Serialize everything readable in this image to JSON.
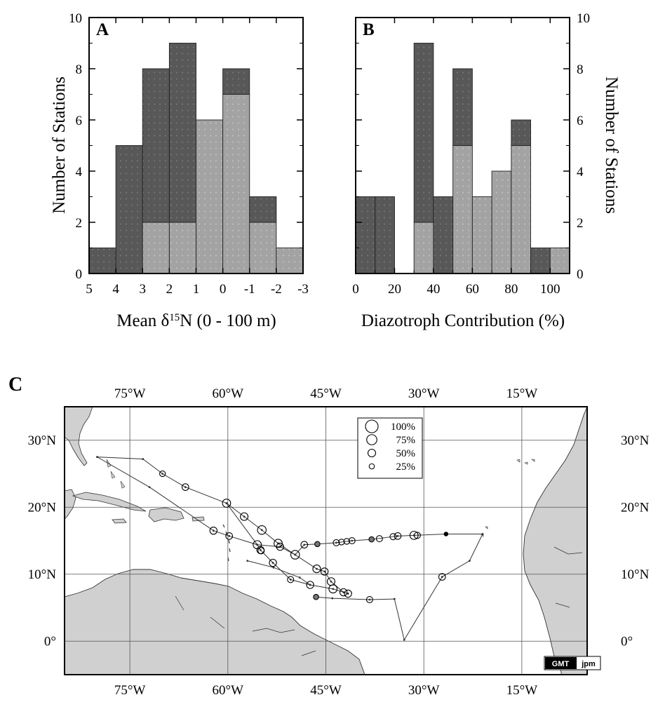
{
  "chart_data": [
    {
      "panel": "A",
      "type": "bar",
      "stacked": true,
      "xlabel": "Mean δ15N (0 - 100 m)",
      "ylabel": "Number of Stations",
      "x_ticks": [
        "5",
        "4",
        "3",
        "2",
        "1",
        "0",
        "-1",
        "-2",
        "-3"
      ],
      "x_reversed": true,
      "xlim": [
        5,
        -3
      ],
      "ylim": [
        0,
        10
      ],
      "y_ticks": [
        0,
        2,
        4,
        6,
        8,
        10
      ],
      "bins": [
        [
          5,
          4
        ],
        [
          4,
          3
        ],
        [
          3,
          2
        ],
        [
          2,
          1
        ],
        [
          1,
          0
        ],
        [
          0,
          -1
        ],
        [
          -1,
          -2
        ],
        [
          -2,
          -3
        ]
      ],
      "series": [
        {
          "values": [
            0,
            0,
            2,
            2,
            6,
            7,
            2,
            1
          ],
          "color": "#a0a0a0"
        },
        {
          "values": [
            1,
            5,
            6,
            7,
            0,
            1,
            1,
            0
          ],
          "color": "#585858"
        }
      ],
      "totals": [
        1,
        5,
        8,
        9,
        6,
        8,
        3,
        1
      ]
    },
    {
      "panel": "B",
      "type": "bar",
      "stacked": true,
      "xlabel": "Diazotroph Contribution (%)",
      "ylabel": "Number of Stations",
      "x_ticks": [
        "0",
        "20",
        "40",
        "60",
        "80",
        "100"
      ],
      "xlim": [
        0,
        110
      ],
      "ylim": [
        0,
        10
      ],
      "y_ticks": [
        0,
        2,
        4,
        6,
        8,
        10
      ],
      "y_axis_side": "right",
      "bins": [
        [
          0,
          10
        ],
        [
          10,
          20
        ],
        [
          20,
          30
        ],
        [
          30,
          40
        ],
        [
          40,
          50
        ],
        [
          50,
          60
        ],
        [
          60,
          70
        ],
        [
          70,
          80
        ],
        [
          80,
          90
        ],
        [
          90,
          100
        ],
        [
          100,
          110
        ]
      ],
      "series": [
        {
          "values": [
            0,
            0,
            0,
            2,
            0,
            5,
            3,
            4,
            5,
            0,
            1
          ],
          "color": "#a0a0a0"
        },
        {
          "values": [
            3,
            3,
            0,
            7,
            3,
            3,
            0,
            0,
            1,
            1,
            0
          ],
          "color": "#585858"
        }
      ],
      "totals": [
        3,
        3,
        0,
        9,
        3,
        8,
        3,
        4,
        6,
        1,
        1
      ]
    },
    {
      "panel": "C",
      "type": "scatter",
      "subtype": "map",
      "lon_range": [
        -85,
        -5
      ],
      "lat_range": [
        -5,
        35
      ],
      "lon_ticks": [
        -75,
        -60,
        -45,
        -30,
        -15
      ],
      "lon_tick_labels": [
        "75°W",
        "60°W",
        "45°W",
        "30°W",
        "15°W"
      ],
      "lat_ticks": [
        0,
        10,
        20,
        30
      ],
      "lat_tick_labels": [
        "0°",
        "10°N",
        "20°N",
        "30°N"
      ],
      "legend": {
        "position": "top-center",
        "entries": [
          "100%",
          "75%",
          "50%",
          "25%"
        ],
        "values": [
          100,
          75,
          50,
          25
        ]
      },
      "points": [
        {
          "lon": -70.0,
          "lat": 25.0,
          "pct": 30
        },
        {
          "lon": -66.5,
          "lat": 23.0,
          "pct": 40
        },
        {
          "lon": -60.2,
          "lat": 20.6,
          "pct": 55
        },
        {
          "lon": -57.5,
          "lat": 18.6,
          "pct": 50
        },
        {
          "lon": -54.8,
          "lat": 16.6,
          "pct": 60
        },
        {
          "lon": -52.3,
          "lat": 14.6,
          "pct": 55
        },
        {
          "lon": -49.7,
          "lat": 12.9,
          "pct": 60
        },
        {
          "lon": -48.3,
          "lat": 14.4,
          "pct": 40
        },
        {
          "lon": -46.3,
          "lat": 14.5,
          "pct": 25
        },
        {
          "lon": -43.4,
          "lat": 14.7,
          "pct": 35
        },
        {
          "lon": -42.6,
          "lat": 14.8,
          "pct": 30
        },
        {
          "lon": -41.8,
          "lat": 14.9,
          "pct": 30
        },
        {
          "lon": -41.0,
          "lat": 15.0,
          "pct": 35
        },
        {
          "lon": -38.0,
          "lat": 15.2,
          "pct": 25
        },
        {
          "lon": -36.8,
          "lat": 15.3,
          "pct": 35
        },
        {
          "lon": -34.7,
          "lat": 15.6,
          "pct": 35
        },
        {
          "lon": -34.0,
          "lat": 15.7,
          "pct": 40
        },
        {
          "lon": -31.5,
          "lat": 15.8,
          "pct": 55
        },
        {
          "lon": -31.0,
          "lat": 15.8,
          "pct": 35
        },
        {
          "lon": -26.6,
          "lat": 16.0,
          "pct": 10
        },
        {
          "lon": -52.0,
          "lat": 14.1,
          "pct": 45
        },
        {
          "lon": -55.5,
          "lat": 14.4,
          "pct": 55
        },
        {
          "lon": -55.0,
          "lat": 13.6,
          "pct": 45
        },
        {
          "lon": -59.8,
          "lat": 15.7,
          "pct": 40
        },
        {
          "lon": -62.2,
          "lat": 16.5,
          "pct": 45
        },
        {
          "lon": -54.9,
          "lat": 13.5,
          "pct": 35
        },
        {
          "lon": -53.1,
          "lat": 11.7,
          "pct": 45
        },
        {
          "lon": -46.4,
          "lat": 10.8,
          "pct": 50
        },
        {
          "lon": -45.2,
          "lat": 10.4,
          "pct": 45
        },
        {
          "lon": -44.2,
          "lat": 8.9,
          "pct": 50
        },
        {
          "lon": -43.9,
          "lat": 7.8,
          "pct": 55
        },
        {
          "lon": -42.3,
          "lat": 7.3,
          "pct": 45
        },
        {
          "lon": -41.6,
          "lat": 7.1,
          "pct": 45
        },
        {
          "lon": -50.4,
          "lat": 9.2,
          "pct": 35
        },
        {
          "lon": -47.4,
          "lat": 8.4,
          "pct": 45
        },
        {
          "lon": -38.3,
          "lat": 6.2,
          "pct": 35
        },
        {
          "lon": -46.5,
          "lat": 6.6,
          "pct": 25
        },
        {
          "lon": -27.2,
          "lat": 9.6,
          "pct": 40
        }
      ],
      "labels": {
        "panel": "C",
        "badge_left": "GMT",
        "badge_right": "jpm"
      }
    }
  ]
}
